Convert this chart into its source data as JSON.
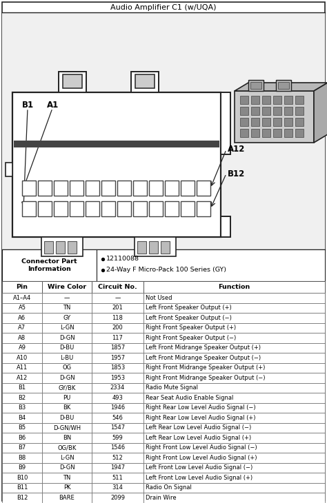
{
  "title": "Audio Amplifier C1 (w/UQA)",
  "connector_info_label": "Connector Part Information",
  "connector_bullets": [
    "12110088",
    "24-Way F Micro-Pack 100 Series (GY)"
  ],
  "table_headers": [
    "Pin",
    "Wire Color",
    "Circuit No.",
    "Function"
  ],
  "table_rows": [
    [
      "A1–A4",
      "—",
      "—",
      "Not Used"
    ],
    [
      "A5",
      "TN",
      "201",
      "Left Front Speaker Output (+)"
    ],
    [
      "A6",
      "GY",
      "118",
      "Left Front Speaker Output (−)"
    ],
    [
      "A7",
      "L-GN",
      "200",
      "Right Front Speaker Output (+)"
    ],
    [
      "A8",
      "D-GN",
      "117",
      "Right Front Speaker Output (−)"
    ],
    [
      "A9",
      "D-BU",
      "1857",
      "Left Front Midrange Speaker Output (+)"
    ],
    [
      "A10",
      "L-BU",
      "1957",
      "Left Front Midrange Speaker Output (−)"
    ],
    [
      "A11",
      "OG",
      "1853",
      "Right Front Midrange Speaker Output (+)"
    ],
    [
      "A12",
      "D-GN",
      "1953",
      "Right Front Midrange Speaker Output (−)"
    ],
    [
      "B1",
      "GY/BK",
      "2334",
      "Radio Mute Signal"
    ],
    [
      "B2",
      "PU",
      "493",
      "Rear Seat Audio Enable Signal"
    ],
    [
      "B3",
      "BK",
      "1946",
      "Right Rear Low Level Audio Signal (−)"
    ],
    [
      "B4",
      "D-BU",
      "546",
      "Right Rear Low Level Audio Signal (+)"
    ],
    [
      "B5",
      "D-GN/WH",
      "1547",
      "Left Rear Low Level Audio Signal (−)"
    ],
    [
      "B6",
      "BN",
      "599",
      "Left Rear Low Level Audio Signal (+)"
    ],
    [
      "B7",
      "OG/BK",
      "1546",
      "Right Front Low Level Audio Signal (−)"
    ],
    [
      "B8",
      "L-GN",
      "512",
      "Right Front Low Level Audio Signal (+)"
    ],
    [
      "B9",
      "D-GN",
      "1947",
      "Left Front Low Level Audio Signal (−)"
    ],
    [
      "B10",
      "TN",
      "511",
      "Left Front Low Level Audio Signal (+)"
    ],
    [
      "B11",
      "PK",
      "314",
      "Radio On Signal"
    ],
    [
      "B12",
      "BARE",
      "2099",
      "Drain Wire"
    ]
  ],
  "bg_color": "#ffffff",
  "diag_bg": "#e8e8e8",
  "conn_face_bg": "#d8d8d8",
  "pin_color": "#cccccc",
  "line_color": "#222222"
}
